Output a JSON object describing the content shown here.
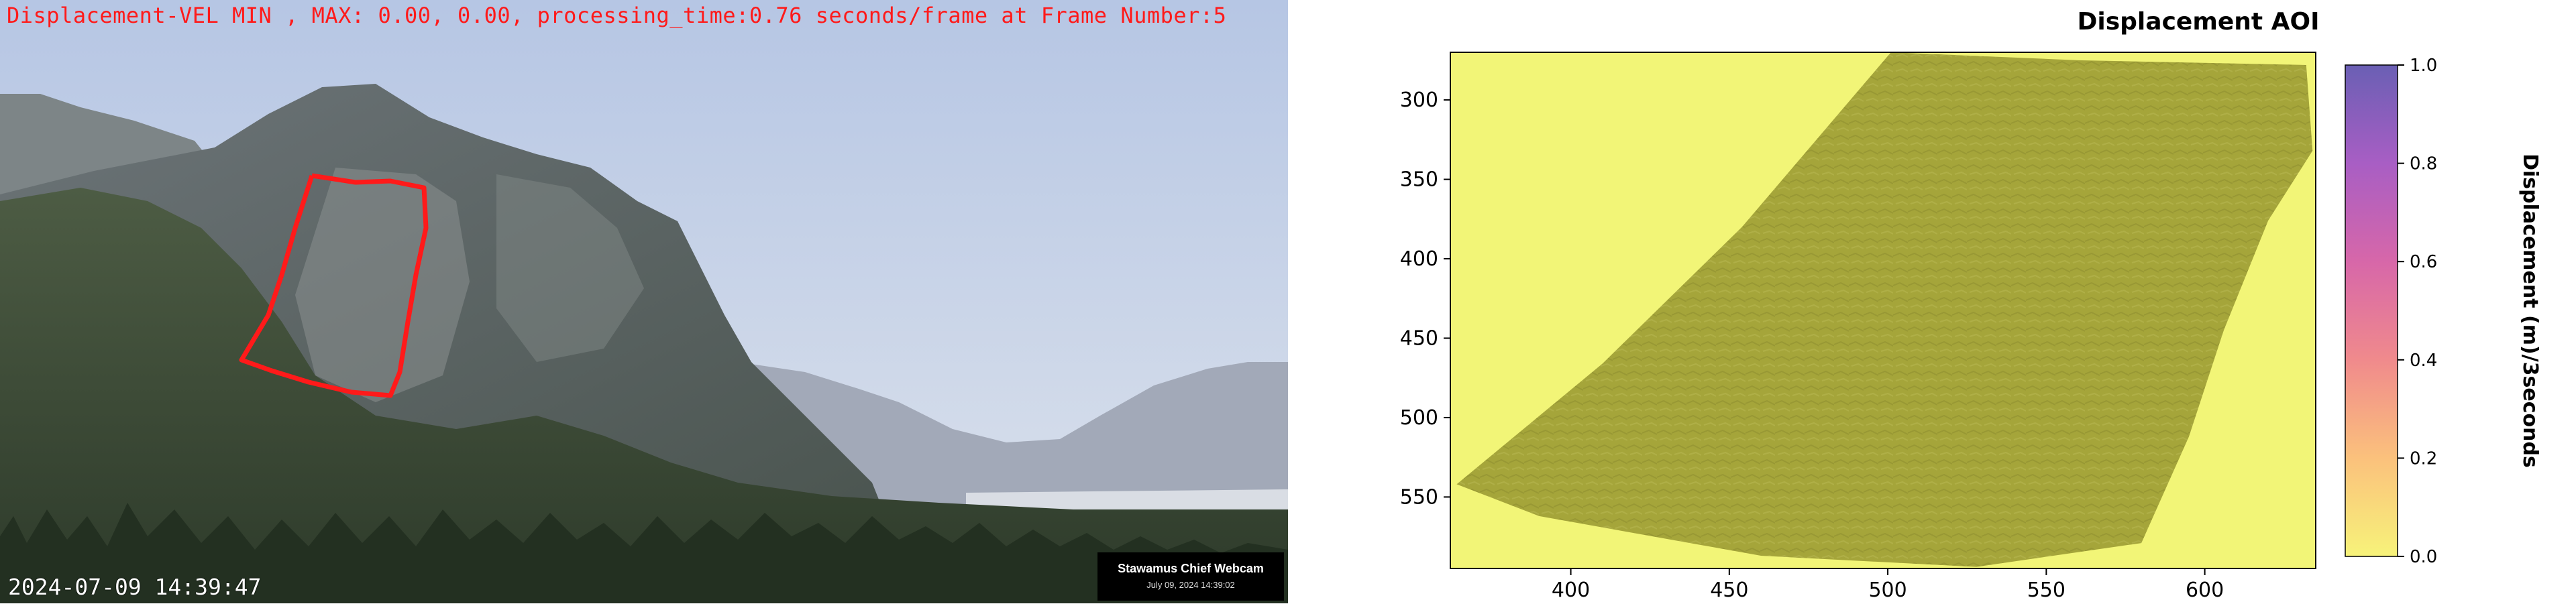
{
  "left_panel": {
    "overlay_text": "Displacement-VEL MIN , MAX: 0.00, 0.00, processing_time:0.76 seconds/frame at Frame Number:5",
    "timestamp": "2024-07-09 14:39:47",
    "webcam_badge": {
      "name": "Stawamus Chief Webcam",
      "date": "July 09, 2024 14:39:02"
    },
    "roi_color": "#ff1a1a"
  },
  "chart_data": {
    "type": "heatmap",
    "title": "Displacement AOI",
    "xlabel": "",
    "ylabel": "",
    "xlim": [
      362,
      635
    ],
    "ylim": [
      595,
      270
    ],
    "x_ticks": [
      400,
      450,
      500,
      550,
      600
    ],
    "y_ticks": [
      300,
      350,
      400,
      450,
      500,
      550
    ],
    "colorbar": {
      "label": "Displacement (m)/3seconds",
      "range": [
        0.0,
        1.0
      ],
      "ticks": [
        0.0,
        0.2,
        0.4,
        0.6,
        0.8,
        1.0
      ],
      "tick_labels": [
        "0.0",
        "0.2",
        "0.4",
        "0.6",
        "0.8",
        "1.0"
      ],
      "colors": [
        "#f7f37a",
        "#fbc17c",
        "#f08a8c",
        "#d767a9",
        "#a85ec4",
        "#6a5fb4"
      ]
    },
    "aoi_polygon": [
      [
        364,
        542
      ],
      [
        410,
        466
      ],
      [
        454,
        380
      ],
      [
        501,
        270
      ],
      [
        560,
        275
      ],
      [
        632,
        278
      ],
      [
        634,
        332
      ],
      [
        620,
        376
      ],
      [
        606,
        445
      ],
      [
        595,
        512
      ],
      [
        580,
        579
      ],
      [
        528,
        594
      ],
      [
        460,
        587
      ],
      [
        390,
        562
      ]
    ],
    "values_min": 0.0,
    "values_max": 0.0,
    "background_color": "#f2f577",
    "aoi_color": "#a5a53a"
  }
}
